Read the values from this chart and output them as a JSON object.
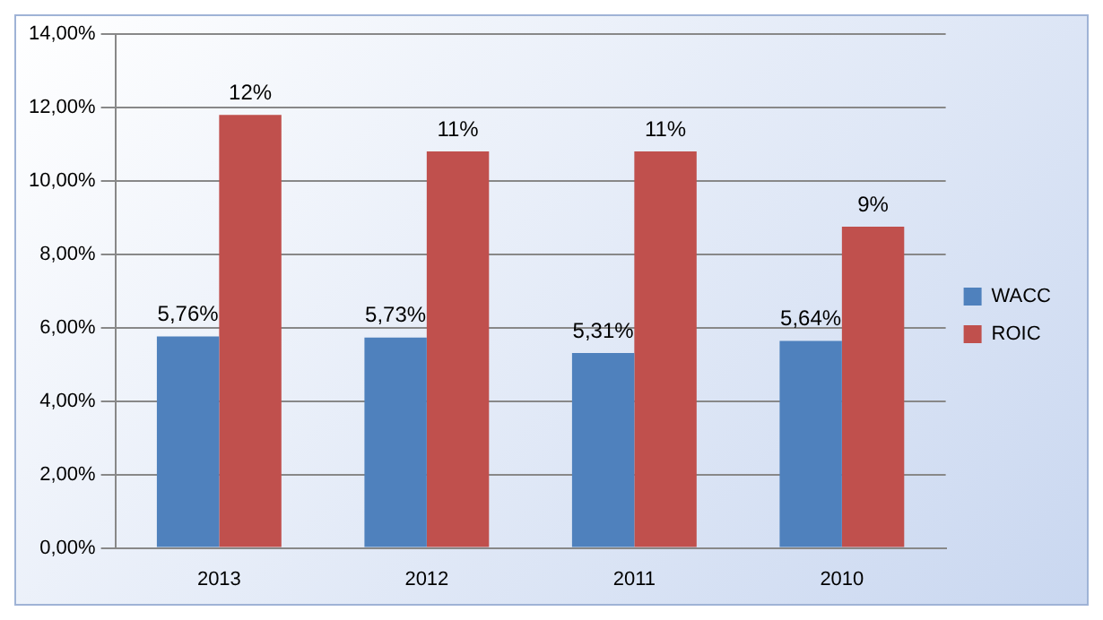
{
  "chart_data": {
    "type": "bar",
    "categories": [
      "2013",
      "2012",
      "2011",
      "2010"
    ],
    "series": [
      {
        "name": "WACC",
        "color": "#4f81bd",
        "values": [
          5.76,
          5.73,
          5.31,
          5.64
        ],
        "value_labels": [
          "5,76%",
          "5,73%",
          "5,31%",
          "5,64%"
        ]
      },
      {
        "name": "ROIC",
        "color": "#c0504d",
        "values": [
          11.8,
          10.8,
          10.8,
          8.75
        ],
        "value_labels": [
          "12%",
          "11%",
          "11%",
          "9%"
        ]
      }
    ],
    "ylim": [
      0,
      14
    ],
    "yticks": [
      {
        "value": 0,
        "label": "0,00%"
      },
      {
        "value": 2,
        "label": "2,00%"
      },
      {
        "value": 4,
        "label": "4,00%"
      },
      {
        "value": 6,
        "label": "6,00%"
      },
      {
        "value": 8,
        "label": "8,00%"
      },
      {
        "value": 10,
        "label": "10,00%"
      },
      {
        "value": 12,
        "label": "12,00%"
      },
      {
        "value": 14,
        "label": "14,00%"
      }
    ],
    "grid": "y",
    "legend": "right"
  }
}
